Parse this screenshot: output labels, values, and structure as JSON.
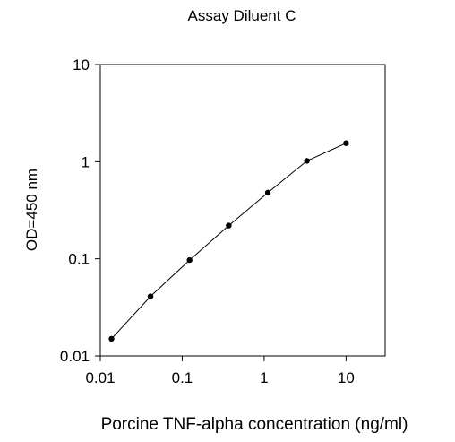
{
  "chart_data": {
    "type": "line",
    "title": "Assay Diluent C",
    "xlabel": "Porcine TNF-alpha concentration (ng/ml)",
    "ylabel": "OD=450 nm",
    "x_scale": "log",
    "y_scale": "log",
    "xlim": [
      0.01,
      30
    ],
    "ylim": [
      0.01,
      10
    ],
    "x_ticks": [
      0.01,
      0.1,
      1,
      10
    ],
    "x_tick_labels": [
      "0.01",
      "0.1",
      "1",
      "10"
    ],
    "y_ticks": [
      0.01,
      0.1,
      1,
      10
    ],
    "y_tick_labels": [
      "0.01",
      "0.1",
      "1",
      "10"
    ],
    "grid": false,
    "legend": "none",
    "colors": {
      "line": "#000000",
      "marker": "#000000"
    },
    "series": [
      {
        "x": [
          0.0137,
          0.041,
          0.123,
          0.37,
          1.11,
          3.33,
          10
        ],
        "y": [
          0.015,
          0.041,
          0.097,
          0.22,
          0.48,
          1.02,
          1.55
        ]
      }
    ]
  }
}
